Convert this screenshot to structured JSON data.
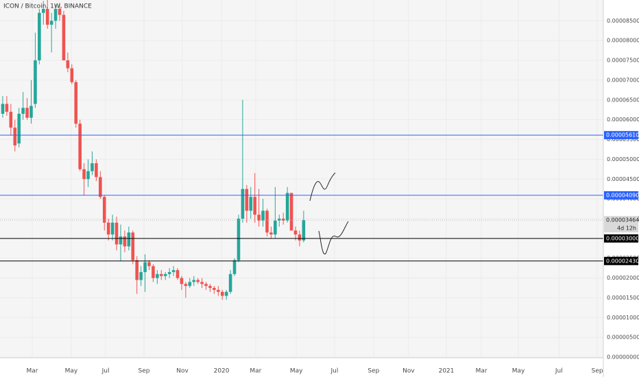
{
  "chart_data": {
    "type": "candlestick",
    "title": "ICON / Bitcoin, 1W, BINANCE",
    "open": [
      6.15e-05,
      6.4e-05,
      6.2e-05,
      5.8e-05,
      5.4e-05,
      6.15e-05,
      6.3e-05,
      6.05e-05,
      6.4e-05,
      7.5e-05,
      8.7e-05,
      8.8e-05,
      8.4e-05,
      8.5e-05,
      8.8e-05,
      8.65e-05,
      7.5e-05,
      7.3e-05,
      6.95e-05,
      5.9e-05,
      4.75e-05,
      4.5e-05,
      4.7e-05,
      4.9e-05,
      4.55e-05,
      4.05e-05,
      3.4e-05,
      3.1e-05,
      3.4e-05,
      2.85e-05,
      3.05e-05,
      2.8e-05,
      3.15e-05,
      2.45e-05,
      1.95e-05,
      2.15e-05,
      2.4e-05,
      2.3e-05,
      2e-05,
      2.1e-05,
      2.05e-05,
      2.1e-05,
      2.15e-05,
      2.2e-05,
      2e-05,
      1.85e-05,
      1.8e-05,
      1.9e-05,
      1.95e-05,
      1.9e-05,
      1.85e-05,
      1.8e-05,
      1.75e-05,
      1.7e-05,
      1.65e-05,
      1.55e-05,
      1.65e-05,
      2.1e-05,
      2.45e-05,
      3.5e-05,
      4.25e-05,
      3.7e-05,
      4.05e-05,
      3.6e-05,
      3.45e-05,
      3.7e-05,
      3.15e-05,
      3.1e-05,
      3.45e-05,
      3.5e-05,
      3.45e-05,
      4.15e-05,
      3.2e-05,
      3.1e-05,
      2.95e-05
    ],
    "high": [
      6.6e-05,
      6.6e-05,
      6.4e-05,
      6e-05,
      6.3e-05,
      6.7e-05,
      6.55e-05,
      7e-05,
      8.2e-05,
      8.8e-05,
      9e-05,
      9.05e-05,
      8.7e-05,
      8.9e-05,
      8.95e-05,
      8.75e-05,
      7.7e-05,
      7.4e-05,
      7e-05,
      6e-05,
      4.9e-05,
      5e-05,
      5.2e-05,
      5e-05,
      4.7e-05,
      4.1e-05,
      3.5e-05,
      3.6e-05,
      3.55e-05,
      3.35e-05,
      3.2e-05,
      3.3e-05,
      3.2e-05,
      2.55e-05,
      2.3e-05,
      2.6e-05,
      2.45e-05,
      2.35e-05,
      2.2e-05,
      2.2e-05,
      2.15e-05,
      2.25e-05,
      2.3e-05,
      2.25e-05,
      2.05e-05,
      1.9e-05,
      2e-05,
      2.05e-05,
      2e-05,
      2e-05,
      1.9e-05,
      1.85e-05,
      1.8e-05,
      1.8e-05,
      1.7e-05,
      1.7e-05,
      2.2e-05,
      2.5e-05,
      3.6e-05,
      6.5e-05,
      4.35e-05,
      4.3e-05,
      4.65e-05,
      4.25e-05,
      4e-05,
      3.75e-05,
      3.3e-05,
      4.3e-05,
      3.6e-05,
      3.65e-05,
      4.3e-05,
      4.15e-05,
      3.3e-05,
      3.2e-05,
      3.7e-05
    ],
    "low": [
      6.05e-05,
      6.1e-05,
      5.6e-05,
      5.2e-05,
      5.3e-05,
      6e-05,
      6e-05,
      5.9e-05,
      6.3e-05,
      7.4e-05,
      8.4e-05,
      8.3e-05,
      7.7e-05,
      8.3e-05,
      8.5e-05,
      7.5e-05,
      7.2e-05,
      6.9e-05,
      5.8e-05,
      4.7e-05,
      4.09e-05,
      4.3e-05,
      4.6e-05,
      4.45e-05,
      4e-05,
      3.2e-05,
      2.95e-05,
      2.95e-05,
      2.7e-05,
      2.43e-05,
      2.65e-05,
      2.7e-05,
      2.35e-05,
      1.6e-05,
      1.8e-05,
      1.65e-05,
      2.2e-05,
      1.9e-05,
      1.85e-05,
      1.95e-05,
      1.95e-05,
      2e-05,
      2.05e-05,
      1.95e-05,
      1.7e-05,
      1.5e-05,
      1.75e-05,
      1.8e-05,
      1.85e-05,
      1.75e-05,
      1.7e-05,
      1.65e-05,
      1.6e-05,
      1.55e-05,
      1.45e-05,
      1.45e-05,
      1.6e-05,
      2.05e-05,
      2.4e-05,
      3.4e-05,
      3.4e-05,
      3.5e-05,
      3.4e-05,
      3.3e-05,
      3.3e-05,
      3.05e-05,
      3e-05,
      3e-05,
      3.3e-05,
      3.35e-05,
      3.4e-05,
      3.2e-05,
      2.95e-05,
      2.8e-05,
      2.9e-05
    ],
    "close": [
      6.4e-05,
      6.2e-05,
      5.8e-05,
      5.35e-05,
      6.15e-05,
      6.3e-05,
      6.05e-05,
      6.35e-05,
      7.5e-05,
      8.7e-05,
      8.8e-05,
      8.4e-05,
      8.5e-05,
      8.8e-05,
      8.65e-05,
      7.5e-05,
      7.3e-05,
      6.95e-05,
      5.9e-05,
      4.75e-05,
      4.5e-05,
      4.7e-05,
      4.9e-05,
      4.55e-05,
      4.05e-05,
      3.4e-05,
      3.1e-05,
      3.4e-05,
      2.85e-05,
      3.05e-05,
      2.8e-05,
      3.15e-05,
      2.45e-05,
      1.95e-05,
      2.15e-05,
      2.4e-05,
      2.3e-05,
      2e-05,
      2.1e-05,
      2.05e-05,
      2.1e-05,
      2.15e-05,
      2.2e-05,
      2e-05,
      1.85e-05,
      1.8e-05,
      1.9e-05,
      1.95e-05,
      1.9e-05,
      1.85e-05,
      1.8e-05,
      1.75e-05,
      1.7e-05,
      1.65e-05,
      1.55e-05,
      1.65e-05,
      2.1e-05,
      2.45e-05,
      3.5e-05,
      4.25e-05,
      3.7e-05,
      4.05e-05,
      3.6e-05,
      3.45e-05,
      3.7e-05,
      3.15e-05,
      3.1e-05,
      3.45e-05,
      3.5e-05,
      3.45e-05,
      4.15e-05,
      3.2e-05,
      3.1e-05,
      2.95e-05,
      3.464e-05
    ],
    "up_color": "#26a69a",
    "down_color": "#ef5350",
    "xlim": [
      -0.67,
      147.7
    ],
    "xticks": [
      {
        "value": 7.25,
        "label": "Mar"
      },
      {
        "value": 16.86,
        "label": "May"
      },
      {
        "value": 25.3,
        "label": "Jul"
      },
      {
        "value": 34.74,
        "label": "Sep"
      },
      {
        "value": 44.18,
        "label": "Nov"
      },
      {
        "value": 53.8,
        "label": "2020"
      },
      {
        "value": 62.2,
        "label": "Mar"
      },
      {
        "value": 72.2,
        "label": "May"
      },
      {
        "value": 81.6,
        "label": "Jul"
      },
      {
        "value": 91.2,
        "label": "Sep"
      },
      {
        "value": 99.8,
        "label": "Nov"
      },
      {
        "value": 109.1,
        "label": "2021"
      },
      {
        "value": 117.7,
        "label": "Mar"
      },
      {
        "value": 126.8,
        "label": "May"
      },
      {
        "value": 136.8,
        "label": "Jul"
      },
      {
        "value": 146.2,
        "label": "Sep"
      }
    ],
    "ylim": [
      -1.6e-07,
      9.025e-05
    ],
    "yticks": [
      {
        "value": 0,
        "label": "0.00000000"
      },
      {
        "value": 5e-06,
        "label": "0.00000500"
      },
      {
        "value": 1e-05,
        "label": "0.00001000"
      },
      {
        "value": 1.5e-05,
        "label": "0.00001500"
      },
      {
        "value": 2e-05,
        "label": "0.00002000"
      },
      {
        "value": 2.5e-05,
        "label": "0.00002500"
      },
      {
        "value": 3e-05,
        "label": "0.00003000"
      },
      {
        "value": 3.5e-05,
        "label": "0.00003500"
      },
      {
        "value": 4e-05,
        "label": "0.00004000"
      },
      {
        "value": 4.5e-05,
        "label": "0.00004500"
      },
      {
        "value": 5e-05,
        "label": "0.00005000"
      },
      {
        "value": 5.5e-05,
        "label": "0.00005500"
      },
      {
        "value": 6e-05,
        "label": "0.00006000"
      },
      {
        "value": 6.5e-05,
        "label": "0.00006500"
      },
      {
        "value": 7e-05,
        "label": "0.00007000"
      },
      {
        "value": 7.5e-05,
        "label": "0.00007500"
      },
      {
        "value": 8e-05,
        "label": "0.00008000"
      },
      {
        "value": 8.5e-05,
        "label": "0.00008500"
      }
    ],
    "grid": true,
    "levels": [
      {
        "value": 5.61e-05,
        "label": "0.00005610",
        "color": "#2962ff"
      },
      {
        "value": 4.09e-05,
        "label": "0.00004090",
        "color": "#2962ff"
      },
      {
        "value": 3e-05,
        "label": "0.00003000",
        "color": "#000000"
      },
      {
        "value": 2.43e-05,
        "label": "0.00002430",
        "color": "#000000"
      }
    ],
    "current_price": {
      "value": 3.464e-05,
      "label": "0.00003464",
      "countdown": "4d 12h"
    }
  }
}
